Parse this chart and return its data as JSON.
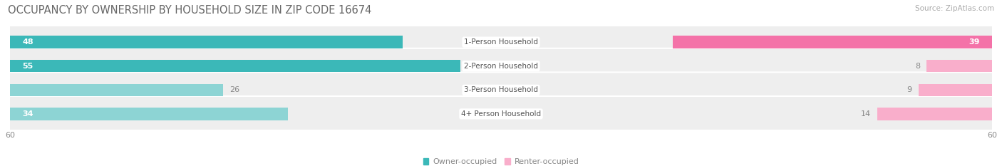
{
  "title": "OCCUPANCY BY OWNERSHIP BY HOUSEHOLD SIZE IN ZIP CODE 16674",
  "source": "Source: ZipAtlas.com",
  "categories": [
    "1-Person Household",
    "2-Person Household",
    "3-Person Household",
    "4+ Person Household"
  ],
  "owner_values": [
    48,
    55,
    26,
    34
  ],
  "renter_values": [
    39,
    8,
    9,
    14
  ],
  "owner_color_dark": "#3BB8B8",
  "owner_color_light": "#8DD4D4",
  "renter_color_dark": "#F472A8",
  "renter_color_light": "#F9AECB",
  "owner_dark_rows": [
    0,
    1
  ],
  "owner_light_rows": [
    2,
    3
  ],
  "renter_dark_rows": [
    0
  ],
  "renter_light_rows": [
    1,
    2,
    3
  ],
  "axis_max": 60,
  "bg_color": "#ffffff",
  "row_bg_color": "#eeeeee",
  "title_fontsize": 10.5,
  "source_fontsize": 7.5,
  "bar_label_fontsize": 8,
  "category_fontsize": 7.5,
  "legend_fontsize": 8,
  "axis_label_fontsize": 8
}
